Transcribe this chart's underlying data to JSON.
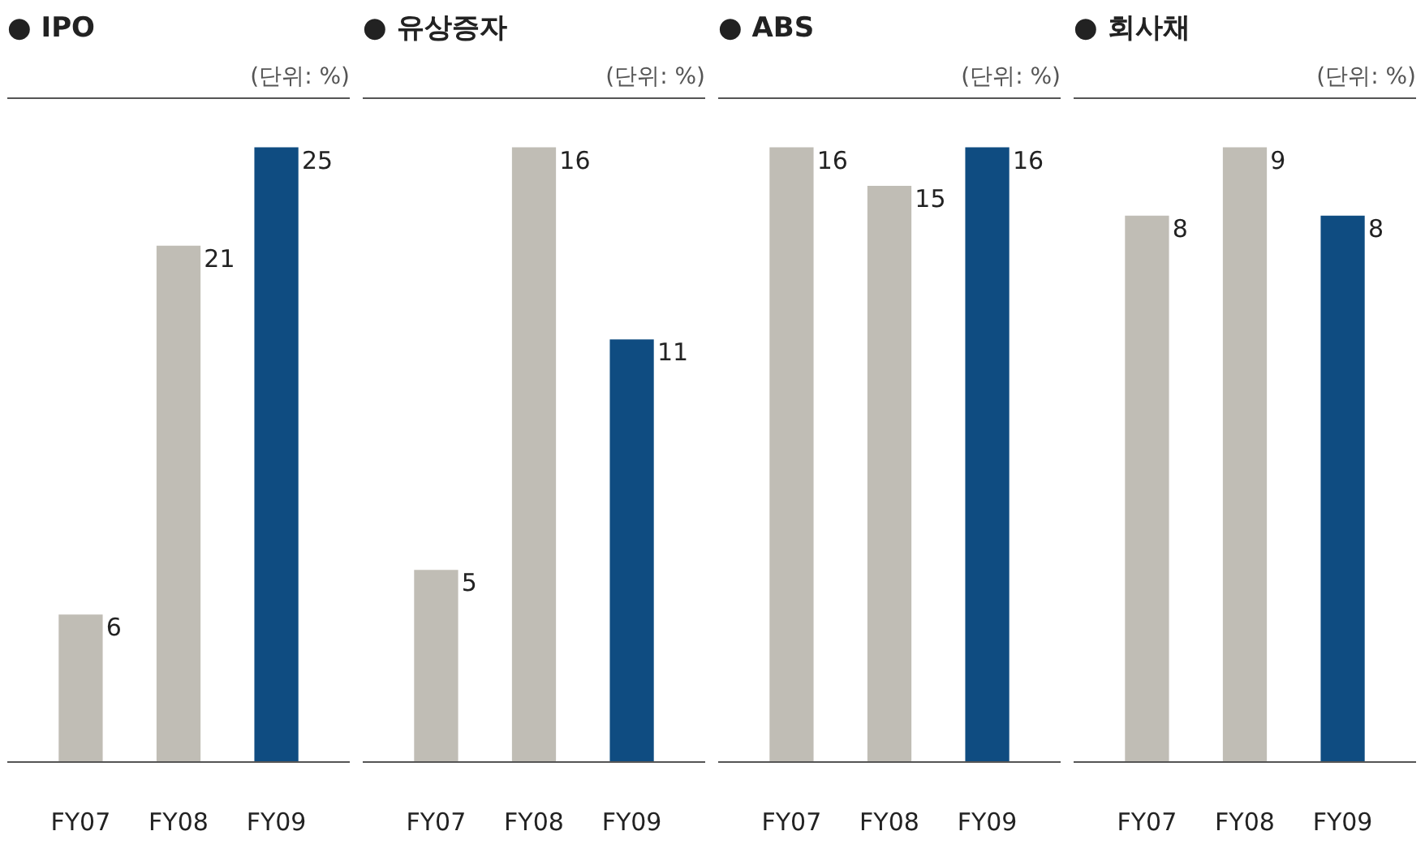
{
  "chart_data": [
    {
      "type": "bar",
      "title": "● IPO",
      "subtitle": "(단위: %)",
      "categories": [
        "FY07",
        "FY08",
        "FY09"
      ],
      "values": [
        6,
        21,
        25
      ],
      "colors": [
        "#c0bdb5",
        "#c0bdb5",
        "#0f4c81"
      ],
      "data_labels": true,
      "grid": false,
      "tick_labels": "x"
    },
    {
      "type": "bar",
      "title": "● 유상증자",
      "subtitle": "(단위: %)",
      "categories": [
        "FY07",
        "FY08",
        "FY09"
      ],
      "values": [
        5,
        16,
        11
      ],
      "colors": [
        "#c0bdb5",
        "#c0bdb5",
        "#0f4c81"
      ],
      "data_labels": true,
      "grid": false,
      "tick_labels": "x"
    },
    {
      "type": "bar",
      "title": "● ABS",
      "subtitle": "(단위: %)",
      "categories": [
        "FY07",
        "FY08",
        "FY09"
      ],
      "values": [
        16,
        15,
        16
      ],
      "colors": [
        "#c0bdb5",
        "#c0bdb5",
        "#0f4c81"
      ],
      "data_labels": true,
      "grid": false,
      "tick_labels": "x"
    },
    {
      "type": "bar",
      "title": "● 회사채",
      "subtitle": "(단위: %)",
      "categories": [
        "FY07",
        "FY08",
        "FY09"
      ],
      "values": [
        8,
        9,
        8
      ],
      "colors": [
        "#c0bdb5",
        "#c0bdb5",
        "#0f4c81"
      ],
      "data_labels": true,
      "grid": false,
      "tick_labels": "x"
    }
  ]
}
